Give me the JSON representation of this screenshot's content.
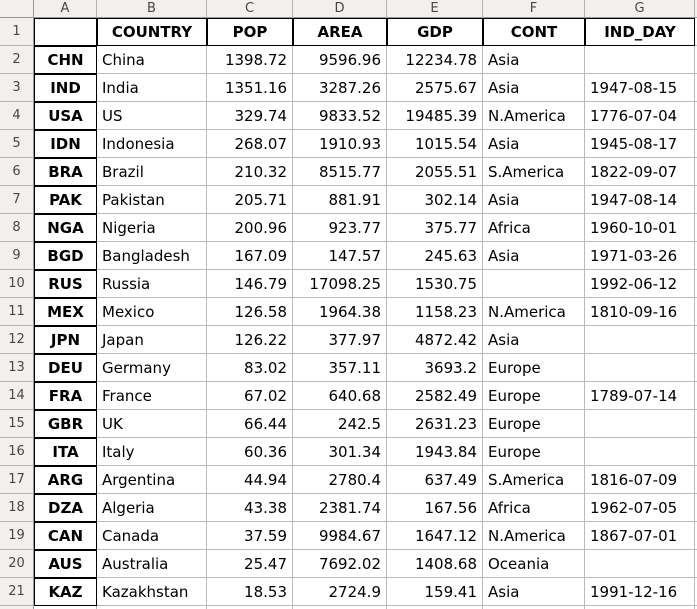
{
  "sheet": {
    "column_letters": [
      "A",
      "B",
      "C",
      "D",
      "E",
      "F",
      "G"
    ],
    "header_row_number": "1",
    "field_headers": {
      "a": "",
      "country": "COUNTRY",
      "pop": "POP",
      "area": "AREA",
      "gdp": "GDP",
      "cont": "CONT",
      "ind_day": "IND_DAY"
    },
    "rows": [
      {
        "n": "2",
        "code": "CHN",
        "country": "China",
        "pop": "1398.72",
        "area": "9596.96",
        "gdp": "12234.78",
        "cont": "Asia",
        "ind_day": ""
      },
      {
        "n": "3",
        "code": "IND",
        "country": "India",
        "pop": "1351.16",
        "area": "3287.26",
        "gdp": "2575.67",
        "cont": "Asia",
        "ind_day": "1947-08-15"
      },
      {
        "n": "4",
        "code": "USA",
        "country": "US",
        "pop": "329.74",
        "area": "9833.52",
        "gdp": "19485.39",
        "cont": "N.America",
        "ind_day": "1776-07-04"
      },
      {
        "n": "5",
        "code": "IDN",
        "country": "Indonesia",
        "pop": "268.07",
        "area": "1910.93",
        "gdp": "1015.54",
        "cont": "Asia",
        "ind_day": "1945-08-17"
      },
      {
        "n": "6",
        "code": "BRA",
        "country": "Brazil",
        "pop": "210.32",
        "area": "8515.77",
        "gdp": "2055.51",
        "cont": "S.America",
        "ind_day": "1822-09-07"
      },
      {
        "n": "7",
        "code": "PAK",
        "country": "Pakistan",
        "pop": "205.71",
        "area": "881.91",
        "gdp": "302.14",
        "cont": "Asia",
        "ind_day": "1947-08-14"
      },
      {
        "n": "8",
        "code": "NGA",
        "country": "Nigeria",
        "pop": "200.96",
        "area": "923.77",
        "gdp": "375.77",
        "cont": "Africa",
        "ind_day": "1960-10-01"
      },
      {
        "n": "9",
        "code": "BGD",
        "country": "Bangladesh",
        "pop": "167.09",
        "area": "147.57",
        "gdp": "245.63",
        "cont": "Asia",
        "ind_day": "1971-03-26"
      },
      {
        "n": "10",
        "code": "RUS",
        "country": "Russia",
        "pop": "146.79",
        "area": "17098.25",
        "gdp": "1530.75",
        "cont": "",
        "ind_day": "1992-06-12"
      },
      {
        "n": "11",
        "code": "MEX",
        "country": "Mexico",
        "pop": "126.58",
        "area": "1964.38",
        "gdp": "1158.23",
        "cont": "N.America",
        "ind_day": "1810-09-16"
      },
      {
        "n": "12",
        "code": "JPN",
        "country": "Japan",
        "pop": "126.22",
        "area": "377.97",
        "gdp": "4872.42",
        "cont": "Asia",
        "ind_day": ""
      },
      {
        "n": "13",
        "code": "DEU",
        "country": "Germany",
        "pop": "83.02",
        "area": "357.11",
        "gdp": "3693.2",
        "cont": "Europe",
        "ind_day": ""
      },
      {
        "n": "14",
        "code": "FRA",
        "country": "France",
        "pop": "67.02",
        "area": "640.68",
        "gdp": "2582.49",
        "cont": "Europe",
        "ind_day": "1789-07-14"
      },
      {
        "n": "15",
        "code": "GBR",
        "country": "UK",
        "pop": "66.44",
        "area": "242.5",
        "gdp": "2631.23",
        "cont": "Europe",
        "ind_day": ""
      },
      {
        "n": "16",
        "code": "ITA",
        "country": "Italy",
        "pop": "60.36",
        "area": "301.34",
        "gdp": "1943.84",
        "cont": "Europe",
        "ind_day": ""
      },
      {
        "n": "17",
        "code": "ARG",
        "country": "Argentina",
        "pop": "44.94",
        "area": "2780.4",
        "gdp": "637.49",
        "cont": "S.America",
        "ind_day": "1816-07-09"
      },
      {
        "n": "18",
        "code": "DZA",
        "country": "Algeria",
        "pop": "43.38",
        "area": "2381.74",
        "gdp": "167.56",
        "cont": "Africa",
        "ind_day": "1962-07-05"
      },
      {
        "n": "19",
        "code": "CAN",
        "country": "Canada",
        "pop": "37.59",
        "area": "9984.67",
        "gdp": "1647.12",
        "cont": "N.America",
        "ind_day": "1867-07-01"
      },
      {
        "n": "20",
        "code": "AUS",
        "country": "Australia",
        "pop": "25.47",
        "area": "7692.02",
        "gdp": "1408.68",
        "cont": "Oceania",
        "ind_day": ""
      },
      {
        "n": "21",
        "code": "KAZ",
        "country": "Kazakhstan",
        "pop": "18.53",
        "area": "2724.9",
        "gdp": "159.41",
        "cont": "Asia",
        "ind_day": "1991-12-16"
      }
    ],
    "colors": {
      "header_bg": "#f1f0ee",
      "header_text": "#474747",
      "grid_line": "#b9b9b9",
      "header_border": "#98989a",
      "cell_border": "#000000",
      "cell_text": "#000000",
      "cell_bg": "#ffffff"
    }
  }
}
